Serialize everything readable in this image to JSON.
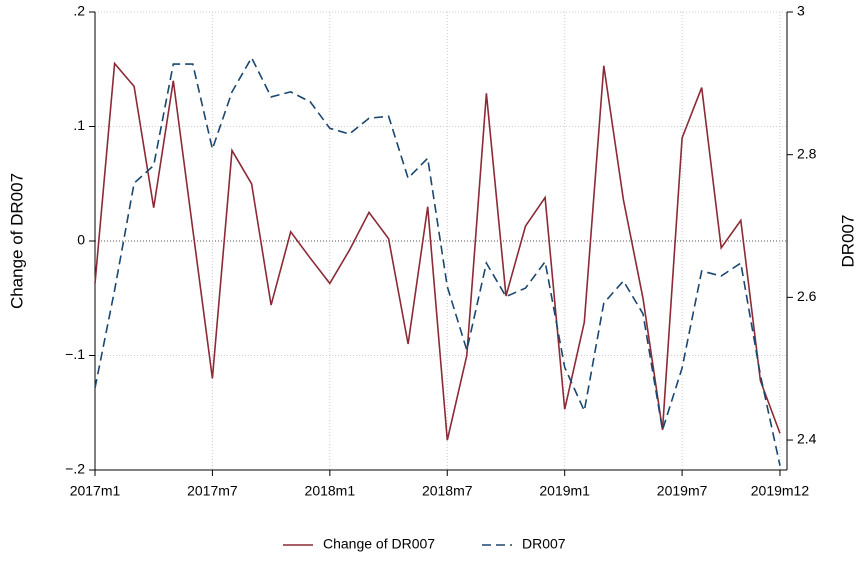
{
  "chart_data": {
    "type": "line",
    "y_label": "Change of DR007",
    "y2_label": "DR007",
    "categories": [
      "2017m1",
      null,
      null,
      null,
      null,
      null,
      "2017m7",
      null,
      null,
      null,
      null,
      null,
      "2018m1",
      null,
      null,
      null,
      null,
      null,
      "2018m7",
      null,
      null,
      null,
      null,
      null,
      "2019m1",
      null,
      null,
      null,
      null,
      null,
      "2019m7",
      null,
      null,
      null,
      null,
      "2019m12"
    ],
    "series": [
      {
        "name": "Change of DR007",
        "color": "#8c2a35",
        "dash": "solid",
        "axis": "y",
        "values": [
          -0.037,
          0.155,
          0.135,
          0.029,
          0.14,
          0.01,
          -0.12,
          0.079,
          0.05,
          -0.056,
          0.008,
          -0.015,
          -0.037,
          -0.008,
          0.025,
          0.002,
          -0.09,
          0.03,
          -0.174,
          -0.1,
          0.129,
          -0.048,
          0.013,
          0.038,
          -0.147,
          -0.071,
          0.153,
          0.036,
          -0.05,
          -0.165,
          0.09,
          0.134,
          -0.006,
          0.018,
          -0.122,
          -0.168
        ]
      },
      {
        "name": "DR007",
        "color": "#1a476f",
        "dash": "dashed",
        "axis": "y2",
        "values": [
          2.473,
          2.61,
          2.76,
          2.785,
          2.927,
          2.927,
          2.808,
          2.888,
          2.936,
          2.881,
          2.888,
          2.874,
          2.837,
          2.829,
          2.851,
          2.854,
          2.767,
          2.795,
          2.615,
          2.526,
          2.648,
          2.601,
          2.613,
          2.65,
          2.502,
          2.441,
          2.592,
          2.623,
          2.577,
          2.414,
          2.501,
          2.637,
          2.63,
          2.648,
          2.491,
          2.364
        ]
      }
    ],
    "ylim": [
      -0.2,
      0.2
    ],
    "yticks": [
      {
        "value": -0.2,
        "label": "−.2"
      },
      {
        "value": -0.1,
        "label": "−.1"
      },
      0,
      {
        "value": 0.1,
        "label": ".1"
      },
      {
        "value": 0.2,
        "label": ".2"
      }
    ],
    "y2lim": [
      2.358,
      3.0
    ],
    "y2ticks": [
      2.4,
      2.6,
      2.8,
      3
    ],
    "grid": true,
    "legend": "bottom"
  }
}
